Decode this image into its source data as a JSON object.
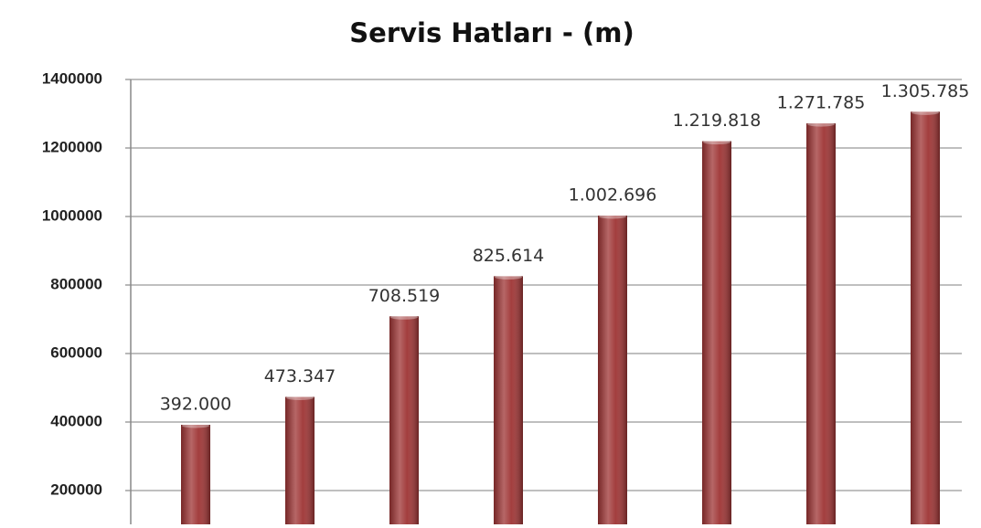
{
  "chart_data": {
    "type": "bar",
    "title": "Servis Hatları - (m)",
    "categories": [
      null,
      null,
      null,
      null,
      null,
      null,
      null,
      null
    ],
    "values": [
      392000,
      473347,
      708519,
      825614,
      1002696,
      1219818,
      1271785,
      1305785
    ],
    "value_labels": [
      "392.000",
      "473.347",
      "708.519",
      "825.614",
      "1.002.696",
      "1.219.818",
      "1.271.785",
      "1.305.785"
    ],
    "color": "#9e3434",
    "ylim": [
      100000,
      1400000
    ],
    "yticks": [
      200000,
      400000,
      600000,
      800000,
      1000000,
      1200000,
      1400000
    ],
    "grid": true
  }
}
